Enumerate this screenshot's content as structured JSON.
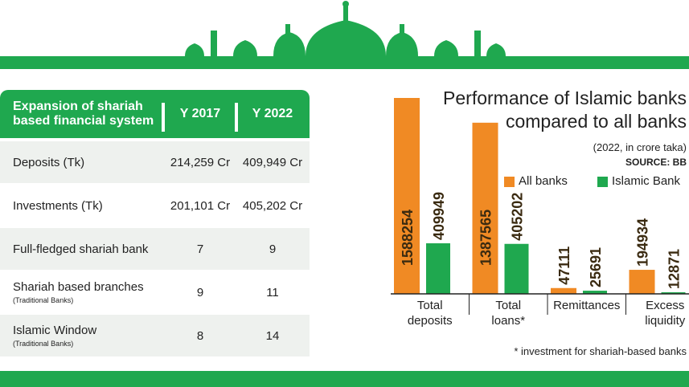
{
  "table": {
    "header": [
      "Expansion of shariah based financial system",
      "Y 2017",
      "Y 2022"
    ],
    "rows": [
      {
        "label": "Deposits (Tk)",
        "y2017": "214,259 Cr",
        "y2022": "409,949 Cr"
      },
      {
        "label": "Investments (Tk)",
        "y2017": "201,101 Cr",
        "y2022": "405,202 Cr"
      },
      {
        "label": "Full-fledged shariah bank",
        "y2017": "7",
        "y2022": "9"
      },
      {
        "label": "Shariah based branches",
        "note": "(Traditional Banks)",
        "y2017": "9",
        "y2022": "11"
      },
      {
        "label": "Islamic Window",
        "note": "(Traditional Banks)",
        "y2017": "8",
        "y2022": "14"
      }
    ]
  },
  "chart_data": {
    "type": "bar",
    "title": "Performance of Islamic banks compared to all banks",
    "subtitle": "(2022, in crore taka)",
    "source": "SOURCE: BB",
    "footnote": "* investment for shariah-based banks",
    "categories": [
      "Total deposits",
      "Total loans*",
      "Remittances",
      "Excess liquidity"
    ],
    "series": [
      {
        "name": "All banks",
        "color": "#f08a24",
        "values": [
          1588254,
          1387565,
          47111,
          194934
        ]
      },
      {
        "name": "Islamic Bank",
        "color": "#1fa84f",
        "values": [
          409949,
          405202,
          25691,
          12871
        ]
      }
    ]
  }
}
